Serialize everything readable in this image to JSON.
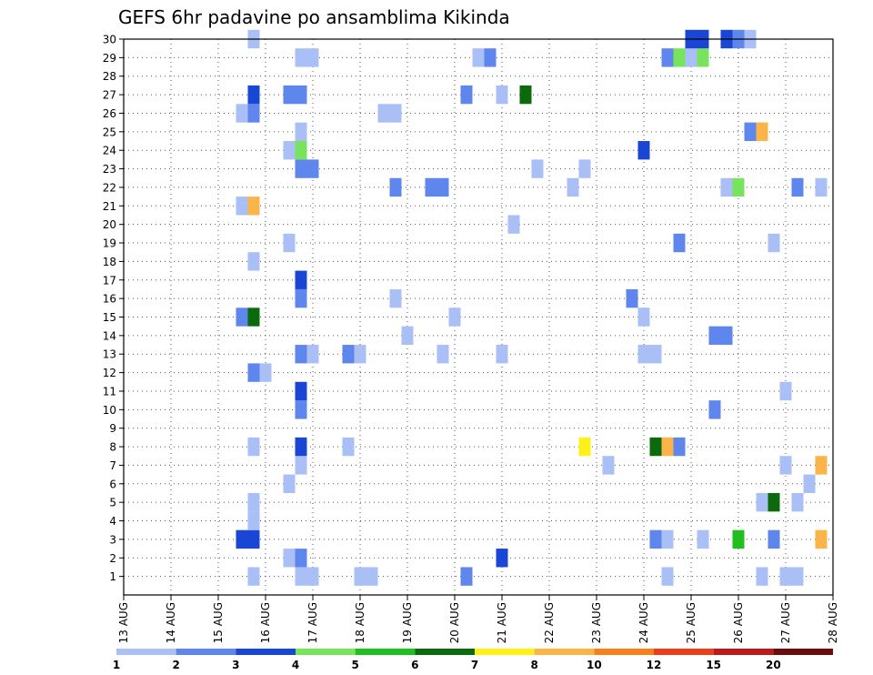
{
  "chart_data": {
    "type": "heatmap",
    "title": "GEFS 6hr padavine po ansamblima Kikinda",
    "xlabel": "",
    "ylabel": "",
    "x_ticks": [
      "13 AUG",
      "14 AUG",
      "15 AUG",
      "16 AUG",
      "17 AUG",
      "18 AUG",
      "19 AUG",
      "20 AUG",
      "21 AUG",
      "22 AUG",
      "23 AUG",
      "24 AUG",
      "25 AUG",
      "26 AUG",
      "27 AUG",
      "28 AUG"
    ],
    "y_ticks": [
      1,
      2,
      3,
      4,
      5,
      6,
      7,
      8,
      9,
      10,
      11,
      12,
      13,
      14,
      15,
      16,
      17,
      18,
      19,
      20,
      21,
      22,
      23,
      24,
      25,
      26,
      27,
      28,
      29,
      30
    ],
    "xlim_days": [
      0,
      15
    ],
    "ylim": [
      0,
      30
    ],
    "grid": true,
    "colorbar": {
      "labels": [
        "1",
        "2",
        "3",
        "4",
        "5",
        "6",
        "7",
        "8",
        "10",
        "12",
        "15",
        "20"
      ],
      "colors": [
        "#a9bff5",
        "#5f86ec",
        "#1a46d6",
        "#77e45c",
        "#1fbf1f",
        "#0b6a0b",
        "#fff01a",
        "#fbb448",
        "#f5801c",
        "#ea3f1a",
        "#bb1a1a",
        "#6b0d0d"
      ]
    },
    "cells": [
      {
        "x": 2.75,
        "m": 1,
        "v": 1.5
      },
      {
        "x": 3.75,
        "m": 1,
        "v": 1.5
      },
      {
        "x": 4.0,
        "m": 1,
        "v": 1.5
      },
      {
        "x": 5.0,
        "m": 1,
        "v": 1.5
      },
      {
        "x": 5.25,
        "m": 1,
        "v": 1.5
      },
      {
        "x": 7.25,
        "m": 1,
        "v": 2.5
      },
      {
        "x": 11.5,
        "m": 1,
        "v": 1.5
      },
      {
        "x": 13.5,
        "m": 1,
        "v": 1.5
      },
      {
        "x": 14.0,
        "m": 1,
        "v": 1.5
      },
      {
        "x": 14.25,
        "m": 1,
        "v": 1.5
      },
      {
        "x": 3.5,
        "m": 2,
        "v": 1.5
      },
      {
        "x": 3.75,
        "m": 2,
        "v": 2.5
      },
      {
        "x": 8.0,
        "m": 2,
        "v": 3.5
      },
      {
        "x": 2.5,
        "m": 3,
        "v": 3.5
      },
      {
        "x": 2.75,
        "m": 3,
        "v": 3.5
      },
      {
        "x": 11.25,
        "m": 3,
        "v": 2.5
      },
      {
        "x": 11.5,
        "m": 3,
        "v": 1.5
      },
      {
        "x": 12.25,
        "m": 3,
        "v": 1.5
      },
      {
        "x": 13.0,
        "m": 3,
        "v": 5.5
      },
      {
        "x": 13.75,
        "m": 3,
        "v": 2.5
      },
      {
        "x": 14.75,
        "m": 3,
        "v": 9
      },
      {
        "x": 2.75,
        "m": 4,
        "v": 1.5
      },
      {
        "x": 2.75,
        "m": 5,
        "v": 1.5
      },
      {
        "x": 13.5,
        "m": 5,
        "v": 1.5
      },
      {
        "x": 13.75,
        "m": 5,
        "v": 6.5
      },
      {
        "x": 14.25,
        "m": 5,
        "v": 1.5
      },
      {
        "x": 3.5,
        "m": 6,
        "v": 1.5
      },
      {
        "x": 14.5,
        "m": 6,
        "v": 1.5
      },
      {
        "x": 3.75,
        "m": 7,
        "v": 1.5
      },
      {
        "x": 10.25,
        "m": 7,
        "v": 1.5
      },
      {
        "x": 14.0,
        "m": 7,
        "v": 1.5
      },
      {
        "x": 14.75,
        "m": 7,
        "v": 9
      },
      {
        "x": 2.75,
        "m": 8,
        "v": 1.5
      },
      {
        "x": 3.75,
        "m": 8,
        "v": 3.5
      },
      {
        "x": 4.75,
        "m": 8,
        "v": 1.5
      },
      {
        "x": 9.75,
        "m": 8,
        "v": 7.5
      },
      {
        "x": 11.25,
        "m": 8,
        "v": 6.5
      },
      {
        "x": 11.5,
        "m": 8,
        "v": 9
      },
      {
        "x": 11.75,
        "m": 8,
        "v": 2.5
      },
      {
        "x": 3.75,
        "m": 10,
        "v": 2.5
      },
      {
        "x": 12.5,
        "m": 10,
        "v": 2.5
      },
      {
        "x": 3.75,
        "m": 11,
        "v": 3.5
      },
      {
        "x": 14.0,
        "m": 11,
        "v": 1.5
      },
      {
        "x": 2.75,
        "m": 12,
        "v": 2.5
      },
      {
        "x": 3.0,
        "m": 12,
        "v": 1.5
      },
      {
        "x": 3.75,
        "m": 13,
        "v": 2.5
      },
      {
        "x": 4.0,
        "m": 13,
        "v": 1.5
      },
      {
        "x": 4.75,
        "m": 13,
        "v": 2.5
      },
      {
        "x": 5.0,
        "m": 13,
        "v": 1.5
      },
      {
        "x": 6.75,
        "m": 13,
        "v": 1.5
      },
      {
        "x": 8.0,
        "m": 13,
        "v": 1.5
      },
      {
        "x": 11.0,
        "m": 13,
        "v": 1.5
      },
      {
        "x": 11.25,
        "m": 13,
        "v": 1.5
      },
      {
        "x": 6.0,
        "m": 14,
        "v": 1.5
      },
      {
        "x": 12.5,
        "m": 14,
        "v": 2.5
      },
      {
        "x": 12.75,
        "m": 14,
        "v": 2.5
      },
      {
        "x": 2.5,
        "m": 15,
        "v": 2.5
      },
      {
        "x": 2.75,
        "m": 15,
        "v": 6.5
      },
      {
        "x": 7.0,
        "m": 15,
        "v": 1.5
      },
      {
        "x": 11.0,
        "m": 15,
        "v": 1.5
      },
      {
        "x": 3.75,
        "m": 16,
        "v": 2.5
      },
      {
        "x": 5.75,
        "m": 16,
        "v": 1.5
      },
      {
        "x": 10.75,
        "m": 16,
        "v": 2.5
      },
      {
        "x": 3.75,
        "m": 17,
        "v": 3.5
      },
      {
        "x": 2.75,
        "m": 18,
        "v": 1.5
      },
      {
        "x": 3.5,
        "m": 19,
        "v": 1.5
      },
      {
        "x": 11.75,
        "m": 19,
        "v": 2.5
      },
      {
        "x": 13.75,
        "m": 19,
        "v": 1.5
      },
      {
        "x": 8.25,
        "m": 20,
        "v": 1.5
      },
      {
        "x": 2.5,
        "m": 21,
        "v": 1.5
      },
      {
        "x": 2.75,
        "m": 21,
        "v": 9
      },
      {
        "x": 5.75,
        "m": 22,
        "v": 2.5
      },
      {
        "x": 6.5,
        "m": 22,
        "v": 2.5
      },
      {
        "x": 6.75,
        "m": 22,
        "v": 2.5
      },
      {
        "x": 9.5,
        "m": 22,
        "v": 1.5
      },
      {
        "x": 12.75,
        "m": 22,
        "v": 1.5
      },
      {
        "x": 13.0,
        "m": 22,
        "v": 4.5
      },
      {
        "x": 14.25,
        "m": 22,
        "v": 2.5
      },
      {
        "x": 14.75,
        "m": 22,
        "v": 1.5
      },
      {
        "x": 3.75,
        "m": 23,
        "v": 2.5
      },
      {
        "x": 4.0,
        "m": 23,
        "v": 2.5
      },
      {
        "x": 8.75,
        "m": 23,
        "v": 1.5
      },
      {
        "x": 9.75,
        "m": 23,
        "v": 1.5
      },
      {
        "x": 3.5,
        "m": 24,
        "v": 1.5
      },
      {
        "x": 3.75,
        "m": 24,
        "v": 4.5
      },
      {
        "x": 11.0,
        "m": 24,
        "v": 3.5
      },
      {
        "x": 3.75,
        "m": 25,
        "v": 1.5
      },
      {
        "x": 13.25,
        "m": 25,
        "v": 2.5
      },
      {
        "x": 13.5,
        "m": 25,
        "v": 9
      },
      {
        "x": 2.5,
        "m": 26,
        "v": 1.5
      },
      {
        "x": 2.75,
        "m": 26,
        "v": 2.5
      },
      {
        "x": 5.5,
        "m": 26,
        "v": 1.5
      },
      {
        "x": 5.75,
        "m": 26,
        "v": 1.5
      },
      {
        "x": 2.75,
        "m": 27,
        "v": 3.5
      },
      {
        "x": 3.5,
        "m": 27,
        "v": 2.5
      },
      {
        "x": 3.75,
        "m": 27,
        "v": 2.5
      },
      {
        "x": 7.25,
        "m": 27,
        "v": 2.5
      },
      {
        "x": 8.0,
        "m": 27,
        "v": 1.5
      },
      {
        "x": 8.5,
        "m": 27,
        "v": 6.5
      },
      {
        "x": 3.75,
        "m": 29,
        "v": 1.5
      },
      {
        "x": 4.0,
        "m": 29,
        "v": 1.5
      },
      {
        "x": 7.5,
        "m": 29,
        "v": 1.5
      },
      {
        "x": 7.75,
        "m": 29,
        "v": 2.5
      },
      {
        "x": 11.5,
        "m": 29,
        "v": 2.5
      },
      {
        "x": 11.75,
        "m": 29,
        "v": 4.5
      },
      {
        "x": 12.0,
        "m": 29,
        "v": 1.5
      },
      {
        "x": 12.25,
        "m": 29,
        "v": 4.5
      },
      {
        "x": 2.75,
        "m": 30,
        "v": 1.5
      },
      {
        "x": 12.0,
        "m": 30,
        "v": 3.5
      },
      {
        "x": 12.25,
        "m": 30,
        "v": 3.5
      },
      {
        "x": 12.75,
        "m": 30,
        "v": 3.5
      },
      {
        "x": 13.0,
        "m": 30,
        "v": 2.5
      },
      {
        "x": 13.25,
        "m": 30,
        "v": 1.5
      }
    ]
  }
}
